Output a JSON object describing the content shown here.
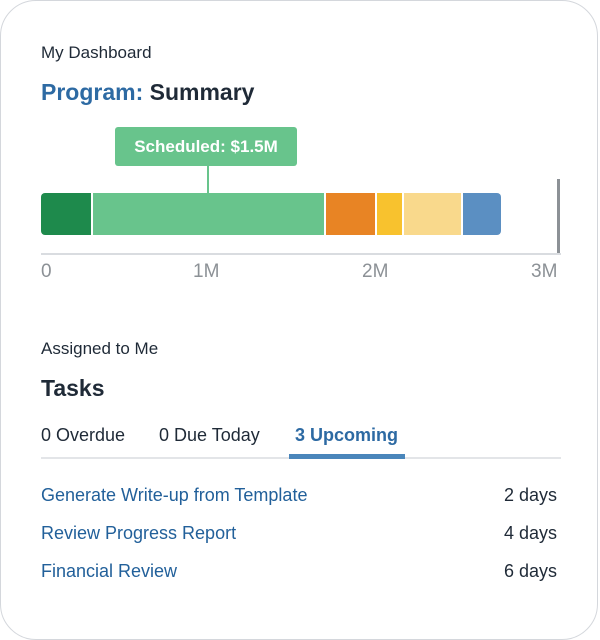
{
  "header": {
    "eyebrow": "My Dashboard",
    "title_accent": "Program:",
    "title_main": "Summary"
  },
  "chart_data": {
    "type": "bar",
    "orientation": "horizontal-stacked",
    "unit": "M",
    "xlim": [
      0,
      3
    ],
    "ticks": [
      "0",
      "1M",
      "2M",
      "3M"
    ],
    "segments": [
      {
        "value": 0.31,
        "color": "#1e8a4c"
      },
      {
        "value": 1.38,
        "color": "#68c48c"
      },
      {
        "value": 0.3,
        "color": "#e88424"
      },
      {
        "value": 0.16,
        "color": "#f8c22e"
      },
      {
        "value": 0.35,
        "color": "#f9d98c"
      },
      {
        "value": 0.23,
        "color": "#5b8fc2"
      }
    ],
    "limit_marker": 3.0,
    "tooltip": "Scheduled: $1.5M"
  },
  "tasks": {
    "eyebrow": "Assigned to Me",
    "title": "Tasks",
    "tabs": [
      {
        "label": "0 Overdue"
      },
      {
        "label": "0 Due Today"
      },
      {
        "label": "3 Upcoming"
      }
    ],
    "active_tab": 2,
    "items": [
      {
        "name": "Generate Write-up from Template",
        "due": "2 days"
      },
      {
        "name": "Review Progress Report",
        "due": "4 days"
      },
      {
        "name": "Financial Review",
        "due": "6 days"
      }
    ]
  }
}
